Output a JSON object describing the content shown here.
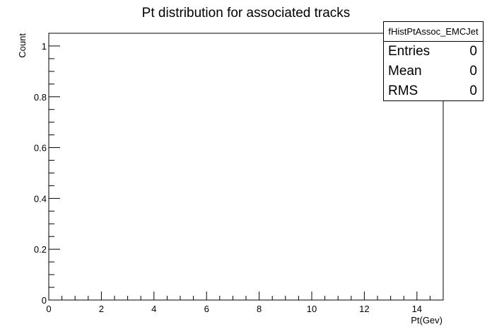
{
  "chart_data": {
    "type": "bar",
    "title": "Pt distribution for associated tracks",
    "xlabel": "Pt(Gev)",
    "ylabel": "Count",
    "xlim": [
      0,
      15
    ],
    "ylim": [
      0,
      1.05
    ],
    "xticks": [
      0,
      2,
      4,
      6,
      8,
      10,
      12,
      14
    ],
    "yticks": [
      0,
      0.2,
      0.4,
      0.6,
      0.8,
      1
    ],
    "x": [],
    "values": []
  },
  "stats": {
    "name": "fHistPtAssoc_EMCJet",
    "rows": [
      {
        "label": "Entries",
        "value": "0"
      },
      {
        "label": "Mean",
        "value": "0"
      },
      {
        "label": "RMS",
        "value": "0"
      }
    ]
  },
  "colors": {
    "axis": "#000000",
    "background": "#ffffff"
  }
}
